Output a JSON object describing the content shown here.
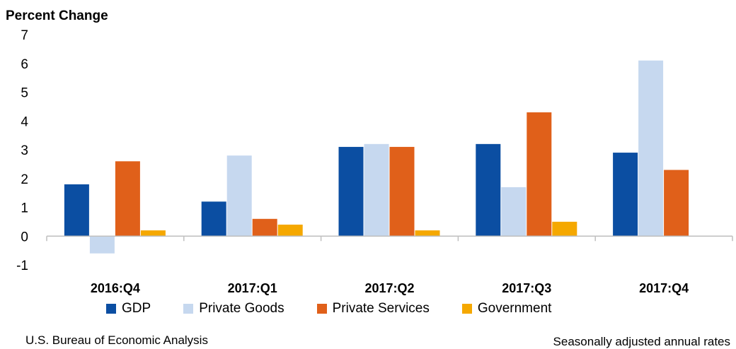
{
  "chart_data": {
    "type": "bar",
    "ylabel": "Percent Change",
    "categories": [
      "2016:Q4",
      "2017:Q1",
      "2017:Q2",
      "2017:Q3",
      "2017:Q4"
    ],
    "ylim": [
      -1,
      7
    ],
    "yticks": [
      7,
      6,
      5,
      4,
      3,
      2,
      1,
      0,
      -1
    ],
    "grid": false,
    "legend_position": "bottom",
    "series": [
      {
        "name": "GDP",
        "color": "#0b4ea2",
        "values": [
          1.8,
          1.2,
          3.1,
          3.2,
          2.9
        ]
      },
      {
        "name": "Private Goods",
        "color": "#c6d8ef",
        "values": [
          -0.6,
          2.8,
          3.2,
          1.7,
          6.1
        ]
      },
      {
        "name": "Private Services",
        "color": "#e0601a",
        "values": [
          2.6,
          0.6,
          3.1,
          4.3,
          2.3
        ]
      },
      {
        "name": "Government",
        "color": "#f5a800",
        "values": [
          0.2,
          0.4,
          0.2,
          0.5,
          0.0
        ]
      }
    ]
  },
  "footer": {
    "source": "U.S. Bureau of Economic Analysis",
    "note": "Seasonally adjusted annual rates"
  }
}
